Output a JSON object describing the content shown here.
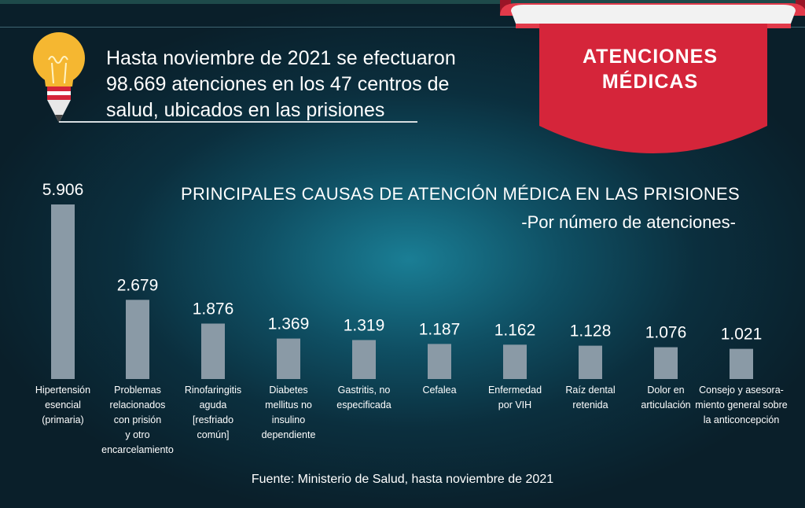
{
  "header": {
    "intro_text": "Hasta noviembre de 2021 se efectuaron 98.669 atenciones en los 47 centros de salud, ubicados en las prisiones",
    "ribbon_line1": "ATENCIONES",
    "ribbon_line2": "MÉDICAS"
  },
  "colors": {
    "accent": "#d5253a",
    "bar": "#8a9aa6",
    "background": "#0f4f63"
  },
  "source": "Fuente: Ministerio de Salud, hasta noviembre de 2021",
  "chart_data": {
    "type": "bar",
    "title": "PRINCIPALES CAUSAS DE ATENCIÓN MÉDICA EN LAS PRISIONES",
    "subtitle": "-Por número de atenciones-",
    "categories": [
      [
        "Hipertensión",
        "esencial",
        "(primaria)"
      ],
      [
        "Problemas",
        "relacionados",
        "con prisión",
        "y otro",
        "encarcelamiento"
      ],
      [
        "Rinofaringitis",
        "aguda",
        "[resfriado",
        "común]"
      ],
      [
        "Diabetes",
        "mellitus no",
        "insulino",
        "dependiente"
      ],
      [
        "Gastritis, no",
        "especificada"
      ],
      [
        "Cefalea"
      ],
      [
        "Enfermedad",
        "por VIH"
      ],
      [
        "Raíz dental",
        "retenida"
      ],
      [
        "Dolor en",
        "articulación"
      ],
      [
        "Consejo y asesora-",
        "miento general sobre",
        "la anticoncepción"
      ]
    ],
    "values": [
      5906,
      2679,
      1876,
      1369,
      1319,
      1187,
      1162,
      1128,
      1076,
      1021
    ],
    "value_labels": [
      "5.906",
      "2.679",
      "1.876",
      "1.369",
      "1.319",
      "1.187",
      "1.162",
      "1.128",
      "1.076",
      "1.021"
    ],
    "xlabel": "",
    "ylabel": "",
    "ylim": [
      0,
      5906
    ]
  }
}
